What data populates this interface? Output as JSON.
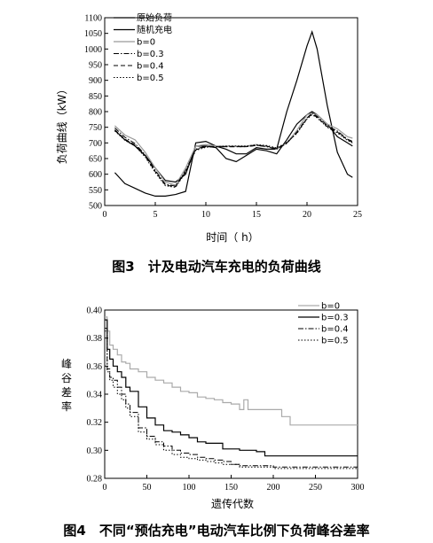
{
  "chart_data": [
    {
      "type": "line",
      "caption": "图3　计及电动汽车充电的负荷曲线",
      "xlabel": "时间（ h）",
      "ylabel": "负荷曲线（kW）",
      "xlim": [
        0,
        25
      ],
      "ylim": [
        500,
        1100
      ],
      "xticks": [
        0,
        5,
        10,
        15,
        20,
        25
      ],
      "yticks": [
        500,
        550,
        600,
        650,
        700,
        750,
        800,
        850,
        900,
        950,
        1000,
        1050,
        1100
      ],
      "legend_position": "top-left",
      "x": [
        1,
        2,
        3,
        4,
        5,
        6,
        7,
        8,
        9,
        10,
        11,
        12,
        13,
        14,
        15,
        16,
        17,
        18,
        19,
        20,
        20.5,
        21,
        22,
        23,
        24,
        24.5
      ],
      "series": [
        {
          "name": "原始负荷",
          "style": "solid",
          "color": "#000000",
          "width": 1.2,
          "values": [
            605,
            570,
            555,
            540,
            530,
            530,
            535,
            545,
            700,
            705,
            690,
            680,
            665,
            665,
            685,
            680,
            680,
            800,
            900,
            1010,
            1055,
            1000,
            820,
            670,
            600,
            590
          ]
        },
        {
          "name": "随机充电",
          "style": "solid",
          "color": "#000000",
          "width": 1.2,
          "values": [
            740,
            710,
            690,
            660,
            620,
            580,
            575,
            600,
            690,
            690,
            685,
            650,
            640,
            660,
            680,
            675,
            665,
            710,
            760,
            790,
            800,
            790,
            760,
            720,
            700,
            690
          ]
        },
        {
          "name": "b=0",
          "style": "solid",
          "color": "#999999",
          "width": 1.2,
          "values": [
            755,
            725,
            710,
            670,
            620,
            575,
            565,
            620,
            690,
            695,
            690,
            690,
            690,
            690,
            695,
            690,
            680,
            700,
            740,
            790,
            795,
            790,
            760,
            745,
            720,
            715
          ]
        },
        {
          "name": "b=0.3",
          "style": "dashdot",
          "color": "#000000",
          "width": 1.0,
          "values": [
            748,
            718,
            698,
            662,
            612,
            568,
            562,
            612,
            680,
            690,
            688,
            688,
            688,
            688,
            692,
            688,
            680,
            698,
            735,
            780,
            795,
            785,
            755,
            738,
            712,
            705
          ]
        },
        {
          "name": "b=0.4",
          "style": "dash",
          "color": "#000000",
          "width": 1.0,
          "values": [
            742,
            712,
            694,
            658,
            608,
            565,
            560,
            608,
            678,
            688,
            688,
            688,
            688,
            688,
            692,
            690,
            682,
            700,
            732,
            778,
            792,
            782,
            752,
            735,
            710,
            702
          ]
        },
        {
          "name": "b=0.5",
          "style": "dot",
          "color": "#000000",
          "width": 1.0,
          "values": [
            738,
            708,
            690,
            655,
            605,
            563,
            558,
            605,
            676,
            686,
            688,
            690,
            690,
            690,
            694,
            692,
            684,
            702,
            730,
            776,
            790,
            780,
            750,
            732,
            708,
            700
          ]
        }
      ]
    },
    {
      "type": "line",
      "caption": "图4　不同“预估充电”电动汽车比例下负荷峰谷差率",
      "xlabel": "遗传代数",
      "ylabel": "峰谷差率",
      "xlim": [
        0,
        300
      ],
      "ylim": [
        0.28,
        0.4
      ],
      "xticks": [
        0,
        50,
        100,
        150,
        200,
        250,
        300
      ],
      "yticks": [
        0.28,
        0.3,
        0.32,
        0.34,
        0.36,
        0.38,
        0.4
      ],
      "legend_position": "top-right",
      "series": [
        {
          "name": "b=0",
          "style": "solid",
          "color": "#aaaaaa",
          "width": 1.2,
          "x": [
            0,
            3,
            6,
            10,
            15,
            20,
            25,
            30,
            40,
            50,
            60,
            70,
            80,
            90,
            100,
            110,
            120,
            130,
            140,
            150,
            160,
            165,
            170,
            180,
            200,
            210,
            220,
            300
          ],
          "values": [
            0.395,
            0.385,
            0.375,
            0.372,
            0.368,
            0.363,
            0.362,
            0.358,
            0.356,
            0.352,
            0.35,
            0.348,
            0.345,
            0.342,
            0.341,
            0.338,
            0.337,
            0.336,
            0.334,
            0.333,
            0.329,
            0.336,
            0.329,
            0.329,
            0.329,
            0.324,
            0.318,
            0.318
          ]
        },
        {
          "name": "b=0.3",
          "style": "solid",
          "color": "#000000",
          "width": 1.2,
          "x": [
            0,
            3,
            6,
            10,
            15,
            20,
            25,
            30,
            40,
            50,
            60,
            70,
            80,
            90,
            100,
            110,
            120,
            140,
            160,
            180,
            190,
            300
          ],
          "values": [
            0.393,
            0.372,
            0.365,
            0.36,
            0.356,
            0.352,
            0.345,
            0.342,
            0.331,
            0.323,
            0.318,
            0.314,
            0.313,
            0.311,
            0.309,
            0.306,
            0.305,
            0.301,
            0.3,
            0.299,
            0.296,
            0.296
          ]
        },
        {
          "name": "b=0.4",
          "style": "dashdot",
          "color": "#000000",
          "width": 1.0,
          "x": [
            0,
            3,
            6,
            10,
            15,
            20,
            25,
            30,
            40,
            50,
            60,
            70,
            80,
            90,
            100,
            110,
            120,
            130,
            140,
            150,
            160,
            200,
            300
          ],
          "values": [
            0.387,
            0.358,
            0.352,
            0.35,
            0.345,
            0.34,
            0.333,
            0.327,
            0.316,
            0.31,
            0.306,
            0.303,
            0.3,
            0.298,
            0.297,
            0.295,
            0.294,
            0.293,
            0.292,
            0.29,
            0.289,
            0.288,
            0.288
          ]
        },
        {
          "name": "b=0.5",
          "style": "dot",
          "color": "#000000",
          "width": 1.0,
          "x": [
            0,
            3,
            6,
            10,
            15,
            20,
            25,
            30,
            40,
            50,
            60,
            70,
            80,
            90,
            100,
            110,
            120,
            130,
            140,
            150,
            160,
            200,
            300
          ],
          "values": [
            0.385,
            0.356,
            0.35,
            0.345,
            0.34,
            0.336,
            0.33,
            0.324,
            0.313,
            0.308,
            0.304,
            0.3,
            0.297,
            0.295,
            0.294,
            0.293,
            0.292,
            0.291,
            0.29,
            0.29,
            0.288,
            0.287,
            0.287
          ]
        }
      ]
    }
  ]
}
